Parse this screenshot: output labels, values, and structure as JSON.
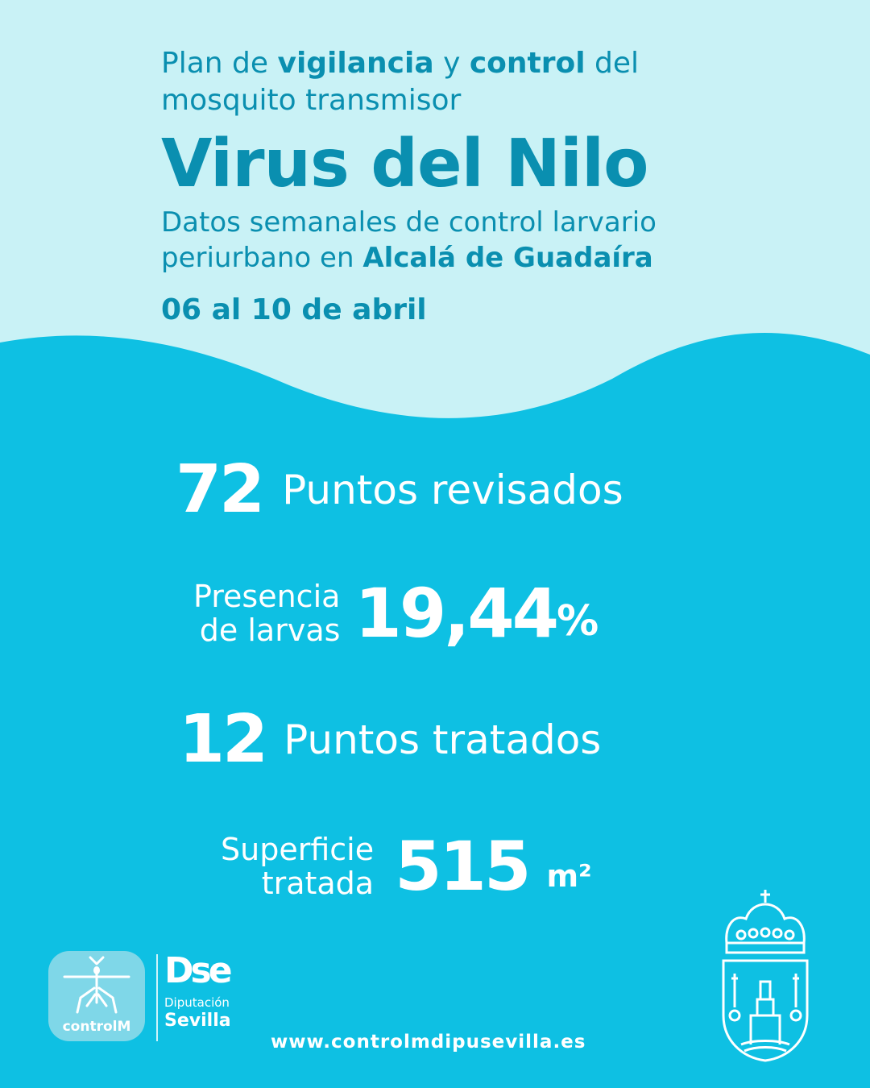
{
  "header": {
    "line1_a": "Plan de ",
    "line1_b": "vigilancia",
    "line1_c": " y ",
    "line1_d": "control",
    "line1_e": " del",
    "line2": "mosquito transmisor",
    "title": "Virus del Nilo",
    "desc_line1": "Datos semanales de control larvario",
    "desc_line2_a": "periurbano en ",
    "desc_line2_b": "Alcalá de Guadaíra",
    "date": "06 al 10 de abril"
  },
  "stats": {
    "points_reviewed_value": "72",
    "points_reviewed_label": "Puntos revisados",
    "presence_label_1": "Presencia",
    "presence_label_2": "de larvas",
    "presence_value": "19,44",
    "presence_unit": "%",
    "points_treated_value": "12",
    "points_treated_label": "Puntos tratados",
    "surface_label_1": "Superficie",
    "surface_label_2": "tratada",
    "surface_value": "515",
    "surface_unit": "m²"
  },
  "footer": {
    "controlm_logo_text": "controlM",
    "diputacion_mark": "Dse",
    "diputacion_line1": "Diputación",
    "diputacion_line2": "Sevilla",
    "url": "www.controlmdipusevilla.es"
  },
  "colors": {
    "light_bg": "#c9f2f6",
    "main_bg": "#0ec0e3",
    "title_blue": "#0a8fb0",
    "white": "#ffffff"
  },
  "icons": [
    "mosquito-icon",
    "coat-of-arms-icon"
  ]
}
